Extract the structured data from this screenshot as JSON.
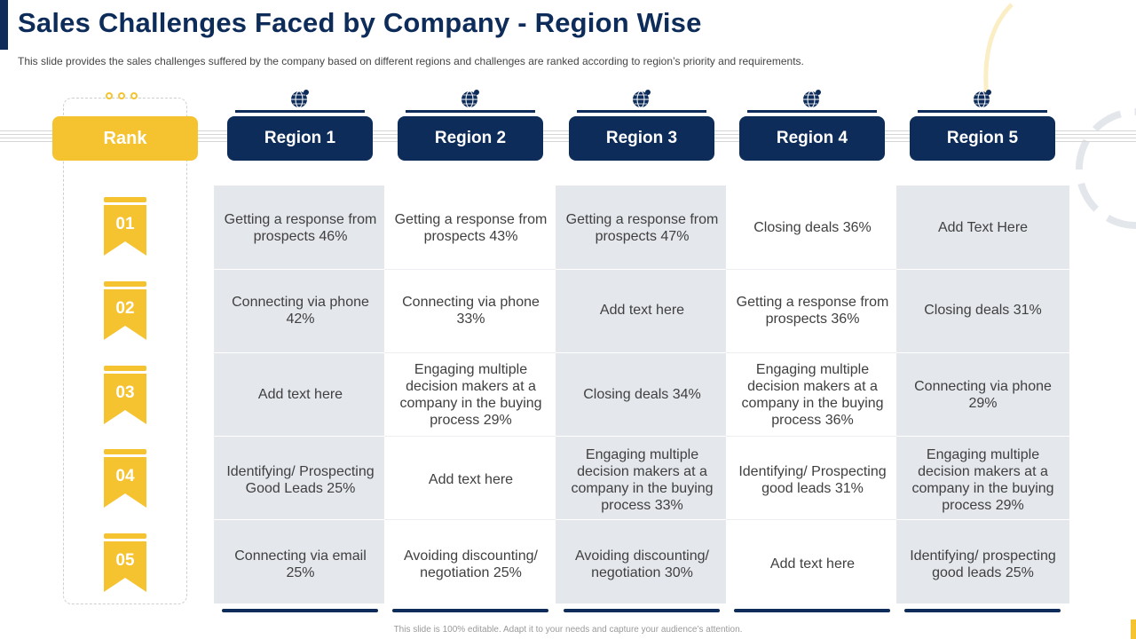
{
  "title": "Sales Challenges Faced by Company - Region Wise",
  "subtitle": "This slide provides  the sales challenges suffered  by the company based on different  regions  and challenges  are ranked according to region’s priority and requirements.",
  "rank_header": "Rank",
  "ranks": [
    "01",
    "02",
    "03",
    "04",
    "05"
  ],
  "regions": [
    {
      "name": "Region 1",
      "items": [
        "Getting a response from prospects 46%",
        "Connecting via phone 42%",
        "Add text here",
        "Identifying/  Prospecting Good Leads 25%",
        "Connecting via email 25%"
      ]
    },
    {
      "name": "Region 2",
      "items": [
        "Getting a response from prospects 43%",
        "Connecting via phone 33%",
        "Engaging multiple decision makers at a company in the buying process 29%",
        "Add text here",
        "Avoiding discounting/ negotiation 25%"
      ]
    },
    {
      "name": "Region 3",
      "items": [
        "Getting a response from prospects 47%",
        "Add text here",
        "Closing deals 34%",
        "Engaging multiple decision makers at a company in the buying process 33%",
        "Avoiding discounting/ negotiation 30%"
      ]
    },
    {
      "name": "Region 4",
      "items": [
        "Closing deals 36%",
        "Getting a response from prospects 36%",
        "Engaging multiple decision makers at a company in the buying process 36%",
        "Identifying/  Prospecting good leads 31%",
        "Add text here"
      ]
    },
    {
      "name": "Region 5",
      "items": [
        "Add Text Here",
        "Closing deals 31%",
        "Connecting via phone 29%",
        "Engaging multiple decision makers at a company in the buying process 29%",
        "Identifying/  prospecting good leads 25%"
      ]
    }
  ],
  "footer": "This slide is 100% editable. Adapt it to your needs and capture your audience’s attention.",
  "colors": {
    "navy": "#0d2c5a",
    "gold": "#f5c230",
    "cell_gray": "#e4e7ec"
  },
  "icons": {
    "region": "globe-icon",
    "rank": "ribbon-banner"
  }
}
